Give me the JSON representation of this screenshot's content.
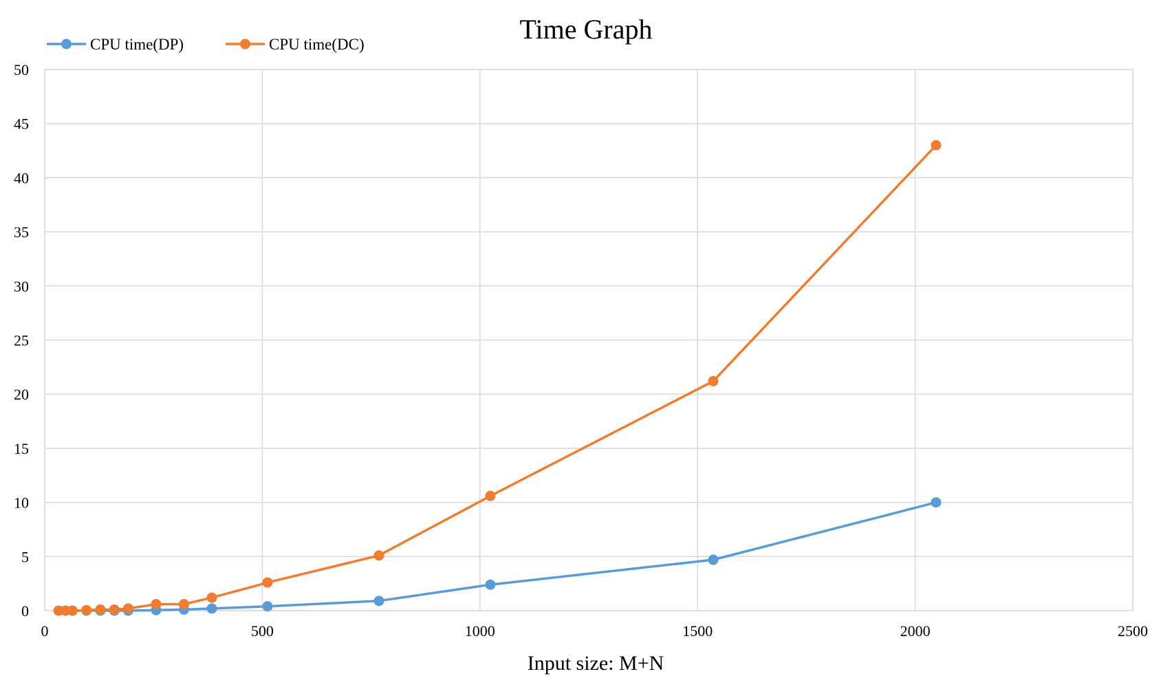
{
  "chart_data": {
    "type": "line",
    "title": "Time Graph",
    "xlabel": "Input size: M+N",
    "ylabel": "",
    "xlim": [
      0,
      2500
    ],
    "ylim": [
      0,
      50
    ],
    "xticks": [
      0,
      500,
      1000,
      1500,
      2000,
      2500
    ],
    "yticks": [
      0,
      5,
      10,
      15,
      20,
      25,
      30,
      35,
      40,
      45,
      50
    ],
    "xtick_labels": [
      "0",
      "500",
      "1000",
      "1500",
      "2000",
      "2500"
    ],
    "ytick_labels": [
      "0",
      "5",
      "10",
      "15",
      "20",
      "25",
      "30",
      "35",
      "40",
      "45",
      "50"
    ],
    "grid": true,
    "legend_position": "top-left",
    "series": [
      {
        "name": "CPU time(DP)",
        "color": "#5b9bd5",
        "x": [
          32,
          48,
          64,
          96,
          128,
          160,
          192,
          256,
          320,
          384,
          512,
          768,
          1024,
          1536,
          2048
        ],
        "y": [
          0,
          0,
          0,
          0,
          0,
          0,
          0,
          0.05,
          0.1,
          0.2,
          0.4,
          0.9,
          2.4,
          4.7,
          10
        ]
      },
      {
        "name": "CPU time(DC)",
        "color": "#ed7d31",
        "x": [
          32,
          48,
          64,
          96,
          128,
          160,
          192,
          256,
          320,
          384,
          512,
          768,
          1024,
          1536,
          2048
        ],
        "y": [
          0,
          0,
          0,
          0.05,
          0.1,
          0.1,
          0.2,
          0.6,
          0.6,
          1.2,
          2.6,
          5.1,
          10.6,
          21.2,
          43
        ]
      }
    ]
  }
}
